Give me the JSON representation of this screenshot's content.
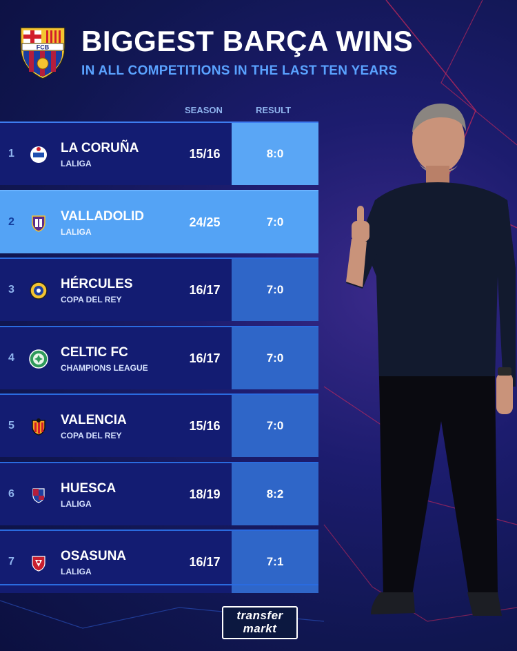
{
  "header": {
    "title": "BIGGEST BARÇA WINS",
    "subtitle": "IN ALL COMPETITIONS IN THE LAST TEN YEARS",
    "crest_text": "FCB"
  },
  "columns": {
    "season": "SEASON",
    "result": "RESULT"
  },
  "rows": [
    {
      "rank": "1",
      "team": "LA CORUÑA",
      "competition": "LALIGA",
      "season": "15/16",
      "result": "8:0",
      "icon": "deportivo-crest-icon"
    },
    {
      "rank": "2",
      "team": "VALLADOLID",
      "competition": "LALIGA",
      "season": "24/25",
      "result": "7:0",
      "icon": "valladolid-crest-icon"
    },
    {
      "rank": "3",
      "team": "HÉRCULES",
      "competition": "COPA DEL REY",
      "season": "16/17",
      "result": "7:0",
      "icon": "hercules-crest-icon"
    },
    {
      "rank": "4",
      "team": "CELTIC FC",
      "competition": "CHAMPIONS LEAGUE",
      "season": "16/17",
      "result": "7:0",
      "icon": "celtic-crest-icon"
    },
    {
      "rank": "5",
      "team": "VALENCIA",
      "competition": "COPA DEL REY",
      "season": "15/16",
      "result": "7:0",
      "icon": "valencia-crest-icon"
    },
    {
      "rank": "6",
      "team": "HUESCA",
      "competition": "LALIGA",
      "season": "18/19",
      "result": "8:2",
      "icon": "huesca-crest-icon"
    },
    {
      "rank": "7",
      "team": "OSASUNA",
      "competition": "LALIGA",
      "season": "16/17",
      "result": "7:1",
      "icon": "osasuna-crest-icon"
    }
  ],
  "footer": {
    "logo_line1": "transfer",
    "logo_line2": "markt"
  },
  "colors": {
    "background": "#121862",
    "row": "#131c72",
    "highlight_row": "#54a3f5",
    "result_cell": "#2f66c8",
    "accent": "#5aa2ff"
  }
}
